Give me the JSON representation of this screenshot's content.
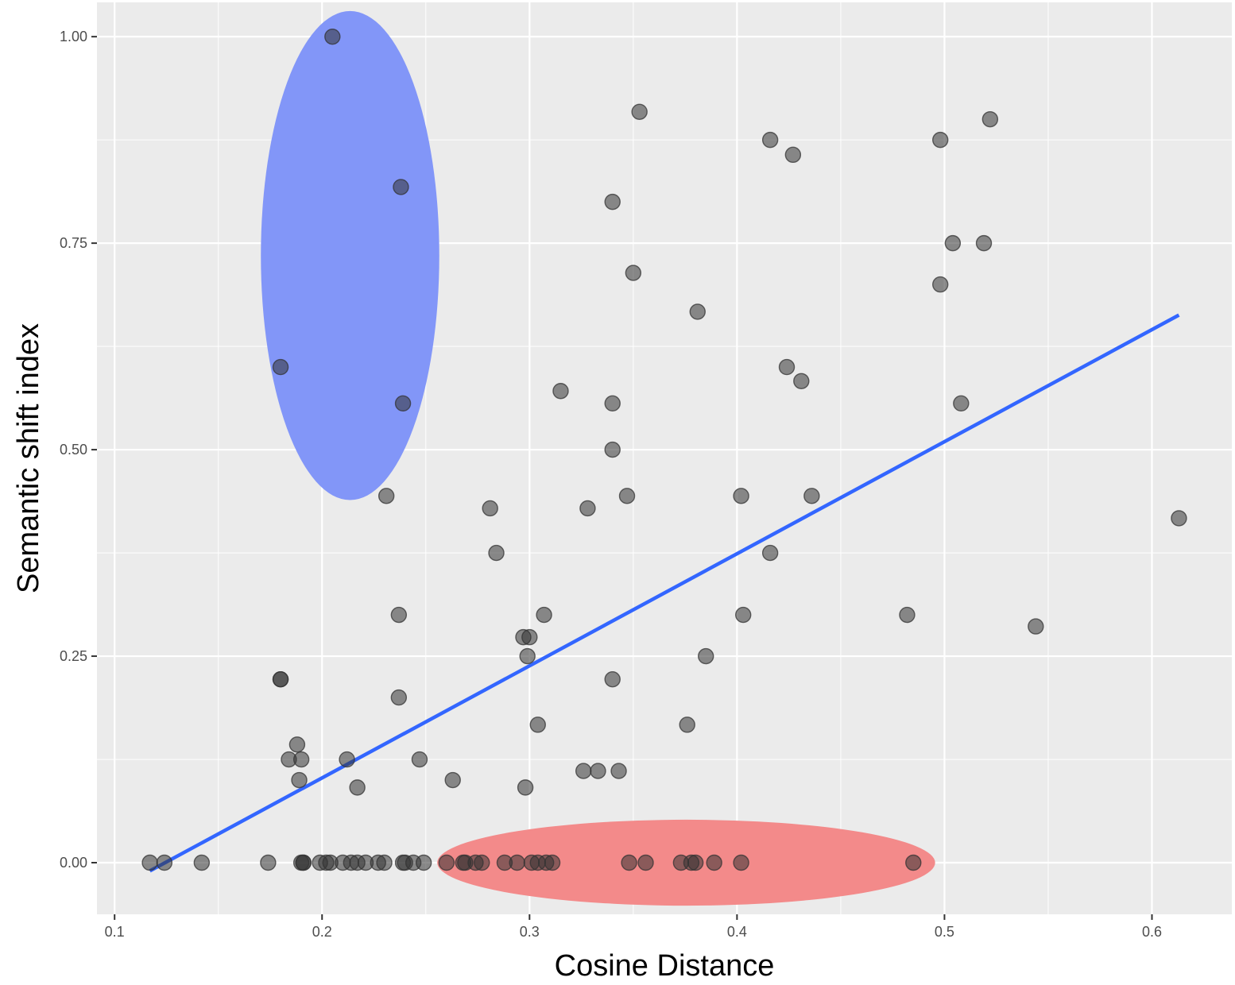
{
  "chart_data": {
    "type": "scatter",
    "title": "",
    "xlabel": "Cosine Distance",
    "ylabel": "Semantic shift index",
    "xlim": [
      0.0915,
      0.6385
    ],
    "ylim": [
      -0.0625,
      1.0415
    ],
    "x_ticks": [
      0.1,
      0.2,
      0.3,
      0.4,
      0.5,
      0.6
    ],
    "x_tick_labels": [
      "0.1",
      "0.2",
      "0.3",
      "0.4",
      "0.5",
      "0.6"
    ],
    "y_ticks": [
      0.0,
      0.25,
      0.5,
      0.75,
      1.0
    ],
    "y_tick_labels": [
      "0.00",
      "0.25",
      "0.50",
      "0.75",
      "1.00"
    ],
    "grid": true,
    "colors": {
      "panel": "#ebebeb",
      "grid": "#ffffff",
      "point": "#333333",
      "trend": "#3366ff",
      "highlight_blue": "#8296f8",
      "highlight_red": "#f38a8a"
    },
    "trend_line": {
      "x": [
        0.117,
        0.613
      ],
      "y": [
        -0.01,
        0.663
      ]
    },
    "highlight_regions": [
      {
        "name": "blue",
        "cx": 0.2135,
        "cy": 0.735,
        "rx": 0.043,
        "ry": 0.296
      },
      {
        "name": "red",
        "cx": 0.3755,
        "cy": 0.0,
        "rx": 0.12,
        "ry": 0.052
      }
    ],
    "points": [
      {
        "x": 0.205,
        "y": 1.0
      },
      {
        "x": 0.238,
        "y": 0.818
      },
      {
        "x": 0.18,
        "y": 0.6
      },
      {
        "x": 0.239,
        "y": 0.556
      },
      {
        "x": 0.353,
        "y": 0.909
      },
      {
        "x": 0.416,
        "y": 0.875
      },
      {
        "x": 0.427,
        "y": 0.857
      },
      {
        "x": 0.498,
        "y": 0.875
      },
      {
        "x": 0.522,
        "y": 0.9
      },
      {
        "x": 0.34,
        "y": 0.8
      },
      {
        "x": 0.504,
        "y": 0.75
      },
      {
        "x": 0.519,
        "y": 0.75
      },
      {
        "x": 0.35,
        "y": 0.714
      },
      {
        "x": 0.498,
        "y": 0.7
      },
      {
        "x": 0.381,
        "y": 0.667
      },
      {
        "x": 0.424,
        "y": 0.6
      },
      {
        "x": 0.431,
        "y": 0.583
      },
      {
        "x": 0.315,
        "y": 0.571
      },
      {
        "x": 0.34,
        "y": 0.556
      },
      {
        "x": 0.508,
        "y": 0.556
      },
      {
        "x": 0.34,
        "y": 0.5
      },
      {
        "x": 0.231,
        "y": 0.444
      },
      {
        "x": 0.347,
        "y": 0.444
      },
      {
        "x": 0.402,
        "y": 0.444
      },
      {
        "x": 0.436,
        "y": 0.444
      },
      {
        "x": 0.281,
        "y": 0.429
      },
      {
        "x": 0.328,
        "y": 0.429
      },
      {
        "x": 0.613,
        "y": 0.417
      },
      {
        "x": 0.284,
        "y": 0.375
      },
      {
        "x": 0.416,
        "y": 0.375
      },
      {
        "x": 0.237,
        "y": 0.3
      },
      {
        "x": 0.307,
        "y": 0.3
      },
      {
        "x": 0.403,
        "y": 0.3
      },
      {
        "x": 0.482,
        "y": 0.3
      },
      {
        "x": 0.544,
        "y": 0.286
      },
      {
        "x": 0.297,
        "y": 0.273
      },
      {
        "x": 0.3,
        "y": 0.273
      },
      {
        "x": 0.299,
        "y": 0.25
      },
      {
        "x": 0.385,
        "y": 0.25
      },
      {
        "x": 0.18,
        "y": 0.222
      },
      {
        "x": 0.18,
        "y": 0.222
      },
      {
        "x": 0.34,
        "y": 0.222
      },
      {
        "x": 0.237,
        "y": 0.2
      },
      {
        "x": 0.304,
        "y": 0.167
      },
      {
        "x": 0.376,
        "y": 0.167
      },
      {
        "x": 0.188,
        "y": 0.143
      },
      {
        "x": 0.184,
        "y": 0.125
      },
      {
        "x": 0.19,
        "y": 0.125
      },
      {
        "x": 0.212,
        "y": 0.125
      },
      {
        "x": 0.247,
        "y": 0.125
      },
      {
        "x": 0.326,
        "y": 0.111
      },
      {
        "x": 0.333,
        "y": 0.111
      },
      {
        "x": 0.343,
        "y": 0.111
      },
      {
        "x": 0.189,
        "y": 0.1
      },
      {
        "x": 0.263,
        "y": 0.1
      },
      {
        "x": 0.217,
        "y": 0.091
      },
      {
        "x": 0.298,
        "y": 0.091
      },
      {
        "x": 0.117,
        "y": 0
      },
      {
        "x": 0.124,
        "y": 0
      },
      {
        "x": 0.142,
        "y": 0
      },
      {
        "x": 0.174,
        "y": 0
      },
      {
        "x": 0.19,
        "y": 0
      },
      {
        "x": 0.191,
        "y": 0
      },
      {
        "x": 0.191,
        "y": 0
      },
      {
        "x": 0.199,
        "y": 0
      },
      {
        "x": 0.202,
        "y": 0
      },
      {
        "x": 0.204,
        "y": 0
      },
      {
        "x": 0.21,
        "y": 0
      },
      {
        "x": 0.214,
        "y": 0
      },
      {
        "x": 0.217,
        "y": 0
      },
      {
        "x": 0.221,
        "y": 0
      },
      {
        "x": 0.227,
        "y": 0
      },
      {
        "x": 0.23,
        "y": 0
      },
      {
        "x": 0.239,
        "y": 0
      },
      {
        "x": 0.24,
        "y": 0
      },
      {
        "x": 0.244,
        "y": 0
      },
      {
        "x": 0.249,
        "y": 0
      },
      {
        "x": 0.26,
        "y": 0
      },
      {
        "x": 0.268,
        "y": 0
      },
      {
        "x": 0.269,
        "y": 0
      },
      {
        "x": 0.274,
        "y": 0
      },
      {
        "x": 0.277,
        "y": 0
      },
      {
        "x": 0.288,
        "y": 0
      },
      {
        "x": 0.294,
        "y": 0
      },
      {
        "x": 0.301,
        "y": 0
      },
      {
        "x": 0.304,
        "y": 0
      },
      {
        "x": 0.308,
        "y": 0
      },
      {
        "x": 0.311,
        "y": 0
      },
      {
        "x": 0.348,
        "y": 0
      },
      {
        "x": 0.356,
        "y": 0
      },
      {
        "x": 0.373,
        "y": 0
      },
      {
        "x": 0.378,
        "y": 0
      },
      {
        "x": 0.38,
        "y": 0
      },
      {
        "x": 0.389,
        "y": 0
      },
      {
        "x": 0.402,
        "y": 0
      },
      {
        "x": 0.485,
        "y": 0
      }
    ]
  }
}
